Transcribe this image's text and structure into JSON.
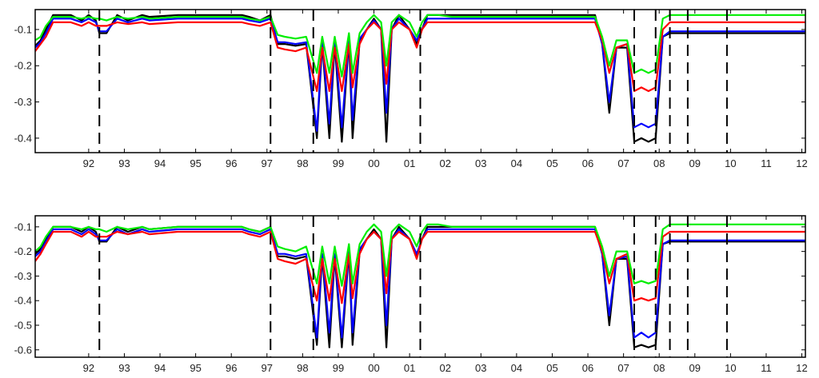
{
  "chart_data": [
    {
      "type": "line",
      "ylim": [
        -0.44,
        -0.045
      ],
      "xlim": [
        1991.0,
        2012.6
      ],
      "yticks": [
        -0.1,
        -0.2,
        -0.3,
        -0.4
      ],
      "ytick_labels": [
        "-0.1",
        "-0.2",
        "-0.3",
        "-0.4"
      ],
      "xticks": [
        1992.5,
        1993.5,
        1994.5,
        1995.5,
        1996.5,
        1997.5,
        1998.5,
        1999.5,
        2000.5,
        2001.5,
        2002.5,
        2003.5,
        2004.5,
        2005.5,
        2006.5,
        2007.5,
        2008.5,
        2009.5,
        2010.5,
        2011.5,
        2012.5
      ],
      "xtick_labels": [
        "92",
        "93",
        "94",
        "95",
        "96",
        "97",
        "98",
        "99",
        "00",
        "01",
        "02",
        "03",
        "04",
        "05",
        "06",
        "07",
        "08",
        "09",
        "10",
        "11",
        "12"
      ],
      "vlines": [
        1992.8,
        1997.6,
        1998.8,
        2001.8,
        2007.8,
        2008.4,
        2008.8,
        2009.3,
        2010.4
      ],
      "grid": false,
      "x": [
        1991.0,
        1991.15,
        1991.3,
        1991.5,
        1992.0,
        1992.3,
        1992.5,
        1992.7,
        1992.8,
        1993.0,
        1993.3,
        1993.6,
        1994.0,
        1994.2,
        1995.0,
        1996.0,
        1996.8,
        1997.0,
        1997.3,
        1997.6,
        1997.8,
        1998.0,
        1998.3,
        1998.6,
        1998.9,
        1999.05,
        1999.25,
        1999.4,
        1999.6,
        1999.8,
        1999.9,
        2000.1,
        2000.3,
        2000.5,
        2000.7,
        2000.85,
        2001.0,
        2001.2,
        2001.5,
        2001.7,
        2001.85,
        2002.0,
        2002.3,
        2002.7,
        2003.0,
        2003.8,
        2004.0,
        2005.0,
        2006.0,
        2006.7,
        2006.9,
        2007.1,
        2007.3,
        2007.6,
        2007.8,
        2008.0,
        2008.2,
        2008.4,
        2008.6,
        2008.8,
        2009.0,
        2010.0,
        2011.0,
        2012.6
      ],
      "series": [
        {
          "color": "#000000",
          "values": [
            -0.145,
            -0.13,
            -0.1,
            -0.06,
            -0.06,
            -0.075,
            -0.06,
            -0.075,
            -0.11,
            -0.11,
            -0.06,
            -0.075,
            -0.06,
            -0.065,
            -0.06,
            -0.06,
            -0.06,
            -0.065,
            -0.075,
            -0.06,
            -0.14,
            -0.14,
            -0.145,
            -0.14,
            -0.4,
            -0.14,
            -0.4,
            -0.14,
            -0.41,
            -0.13,
            -0.4,
            -0.13,
            -0.1,
            -0.07,
            -0.1,
            -0.41,
            -0.1,
            -0.06,
            -0.1,
            -0.14,
            -0.1,
            -0.06,
            -0.06,
            -0.06,
            -0.06,
            -0.06,
            -0.06,
            -0.06,
            -0.06,
            -0.06,
            -0.14,
            -0.33,
            -0.15,
            -0.15,
            -0.41,
            -0.4,
            -0.41,
            -0.4,
            -0.12,
            -0.11,
            -0.11,
            -0.11,
            -0.11,
            -0.11
          ]
        },
        {
          "color": "#0000ff",
          "values": [
            -0.15,
            -0.135,
            -0.11,
            -0.07,
            -0.07,
            -0.08,
            -0.07,
            -0.08,
            -0.105,
            -0.105,
            -0.07,
            -0.08,
            -0.07,
            -0.075,
            -0.07,
            -0.07,
            -0.07,
            -0.075,
            -0.08,
            -0.07,
            -0.135,
            -0.135,
            -0.14,
            -0.135,
            -0.38,
            -0.135,
            -0.36,
            -0.13,
            -0.37,
            -0.125,
            -0.35,
            -0.125,
            -0.1,
            -0.075,
            -0.1,
            -0.33,
            -0.1,
            -0.07,
            -0.1,
            -0.13,
            -0.1,
            -0.07,
            -0.07,
            -0.07,
            -0.07,
            -0.07,
            -0.07,
            -0.07,
            -0.07,
            -0.07,
            -0.14,
            -0.3,
            -0.15,
            -0.14,
            -0.37,
            -0.36,
            -0.37,
            -0.36,
            -0.12,
            -0.105,
            -0.105,
            -0.105,
            -0.105,
            -0.105
          ]
        },
        {
          "color": "#ff0000",
          "values": [
            -0.16,
            -0.14,
            -0.12,
            -0.08,
            -0.08,
            -0.09,
            -0.08,
            -0.09,
            -0.09,
            -0.09,
            -0.08,
            -0.085,
            -0.08,
            -0.085,
            -0.08,
            -0.08,
            -0.08,
            -0.085,
            -0.09,
            -0.08,
            -0.15,
            -0.155,
            -0.16,
            -0.15,
            -0.27,
            -0.15,
            -0.27,
            -0.15,
            -0.27,
            -0.14,
            -0.26,
            -0.14,
            -0.1,
            -0.08,
            -0.1,
            -0.25,
            -0.1,
            -0.08,
            -0.1,
            -0.15,
            -0.1,
            -0.08,
            -0.08,
            -0.08,
            -0.08,
            -0.08,
            -0.08,
            -0.08,
            -0.08,
            -0.08,
            -0.13,
            -0.22,
            -0.15,
            -0.14,
            -0.27,
            -0.26,
            -0.27,
            -0.26,
            -0.1,
            -0.08,
            -0.08,
            -0.08,
            -0.08,
            -0.08
          ]
        },
        {
          "color": "#00ee00",
          "values": [
            -0.13,
            -0.12,
            -0.09,
            -0.065,
            -0.065,
            -0.07,
            -0.065,
            -0.07,
            -0.07,
            -0.075,
            -0.065,
            -0.07,
            -0.065,
            -0.07,
            -0.065,
            -0.065,
            -0.065,
            -0.07,
            -0.075,
            -0.065,
            -0.115,
            -0.12,
            -0.125,
            -0.12,
            -0.22,
            -0.12,
            -0.22,
            -0.12,
            -0.23,
            -0.11,
            -0.22,
            -0.11,
            -0.08,
            -0.06,
            -0.08,
            -0.2,
            -0.08,
            -0.06,
            -0.08,
            -0.12,
            -0.08,
            -0.06,
            -0.06,
            -0.065,
            -0.065,
            -0.065,
            -0.065,
            -0.065,
            -0.065,
            -0.065,
            -0.12,
            -0.2,
            -0.13,
            -0.13,
            -0.22,
            -0.21,
            -0.22,
            -0.21,
            -0.07,
            -0.06,
            -0.06,
            -0.06,
            -0.06,
            -0.06
          ]
        }
      ]
    },
    {
      "type": "line",
      "ylim": [
        -0.63,
        -0.055
      ],
      "xlim": [
        1991.0,
        2012.6
      ],
      "yticks": [
        -0.1,
        -0.2,
        -0.3,
        -0.4,
        -0.5,
        -0.6
      ],
      "ytick_labels": [
        "-0.1",
        "-0.2",
        "-0.3",
        "-0.4",
        "-0.5",
        "-0.6"
      ],
      "xticks": [
        1992.5,
        1993.5,
        1994.5,
        1995.5,
        1996.5,
        1997.5,
        1998.5,
        1999.5,
        2000.5,
        2001.5,
        2002.5,
        2003.5,
        2004.5,
        2005.5,
        2006.5,
        2007.5,
        2008.5,
        2009.5,
        2010.5,
        2011.5,
        2012.5
      ],
      "xtick_labels": [
        "92",
        "93",
        "94",
        "95",
        "96",
        "97",
        "98",
        "99",
        "00",
        "01",
        "02",
        "03",
        "04",
        "05",
        "06",
        "07",
        "08",
        "09",
        "10",
        "11",
        "12"
      ],
      "vlines": [
        1992.8,
        1997.6,
        1998.8,
        2001.8,
        2007.8,
        2008.4,
        2008.8,
        2009.3,
        2010.4
      ],
      "grid": false,
      "x": [
        1991.0,
        1991.15,
        1991.3,
        1991.5,
        1992.0,
        1992.3,
        1992.5,
        1992.7,
        1992.8,
        1993.0,
        1993.3,
        1993.6,
        1994.0,
        1994.2,
        1995.0,
        1996.0,
        1996.8,
        1997.0,
        1997.3,
        1997.6,
        1997.8,
        1998.0,
        1998.3,
        1998.6,
        1998.9,
        1999.05,
        1999.25,
        1999.4,
        1999.6,
        1999.8,
        1999.9,
        2000.1,
        2000.3,
        2000.5,
        2000.7,
        2000.85,
        2001.0,
        2001.2,
        2001.5,
        2001.7,
        2001.85,
        2002.0,
        2002.3,
        2002.7,
        2003.0,
        2003.8,
        2004.0,
        2005.0,
        2006.0,
        2006.7,
        2006.9,
        2007.1,
        2007.3,
        2007.6,
        2007.8,
        2008.0,
        2008.2,
        2008.4,
        2008.6,
        2008.8,
        2009.0,
        2010.0,
        2011.0,
        2012.6
      ],
      "series": [
        {
          "color": "#000000",
          "values": [
            -0.21,
            -0.19,
            -0.15,
            -0.1,
            -0.1,
            -0.12,
            -0.1,
            -0.12,
            -0.16,
            -0.16,
            -0.1,
            -0.12,
            -0.1,
            -0.11,
            -0.1,
            -0.1,
            -0.1,
            -0.11,
            -0.12,
            -0.1,
            -0.22,
            -0.22,
            -0.23,
            -0.22,
            -0.58,
            -0.22,
            -0.59,
            -0.22,
            -0.59,
            -0.2,
            -0.58,
            -0.2,
            -0.15,
            -0.11,
            -0.15,
            -0.59,
            -0.15,
            -0.1,
            -0.15,
            -0.22,
            -0.15,
            -0.1,
            -0.1,
            -0.1,
            -0.1,
            -0.1,
            -0.1,
            -0.1,
            -0.1,
            -0.1,
            -0.21,
            -0.5,
            -0.23,
            -0.23,
            -0.59,
            -0.58,
            -0.59,
            -0.58,
            -0.17,
            -0.16,
            -0.16,
            -0.16,
            -0.16,
            -0.16
          ]
        },
        {
          "color": "#0000ff",
          "values": [
            -0.22,
            -0.2,
            -0.16,
            -0.11,
            -0.11,
            -0.13,
            -0.11,
            -0.13,
            -0.155,
            -0.155,
            -0.11,
            -0.13,
            -0.11,
            -0.12,
            -0.11,
            -0.11,
            -0.11,
            -0.12,
            -0.13,
            -0.11,
            -0.21,
            -0.21,
            -0.22,
            -0.21,
            -0.55,
            -0.21,
            -0.53,
            -0.21,
            -0.55,
            -0.19,
            -0.53,
            -0.19,
            -0.15,
            -0.12,
            -0.15,
            -0.5,
            -0.15,
            -0.11,
            -0.15,
            -0.21,
            -0.15,
            -0.11,
            -0.11,
            -0.11,
            -0.11,
            -0.11,
            -0.11,
            -0.11,
            -0.11,
            -0.11,
            -0.21,
            -0.46,
            -0.23,
            -0.22,
            -0.55,
            -0.53,
            -0.55,
            -0.53,
            -0.17,
            -0.155,
            -0.155,
            -0.155,
            -0.155,
            -0.155
          ]
        },
        {
          "color": "#ff0000",
          "values": [
            -0.24,
            -0.21,
            -0.17,
            -0.12,
            -0.12,
            -0.14,
            -0.12,
            -0.14,
            -0.14,
            -0.14,
            -0.12,
            -0.13,
            -0.12,
            -0.13,
            -0.12,
            -0.12,
            -0.12,
            -0.13,
            -0.14,
            -0.12,
            -0.23,
            -0.24,
            -0.25,
            -0.23,
            -0.4,
            -0.23,
            -0.4,
            -0.23,
            -0.41,
            -0.21,
            -0.39,
            -0.21,
            -0.15,
            -0.12,
            -0.15,
            -0.37,
            -0.15,
            -0.12,
            -0.15,
            -0.23,
            -0.15,
            -0.12,
            -0.12,
            -0.12,
            -0.12,
            -0.12,
            -0.12,
            -0.12,
            -0.12,
            -0.12,
            -0.2,
            -0.33,
            -0.23,
            -0.21,
            -0.4,
            -0.39,
            -0.4,
            -0.39,
            -0.14,
            -0.12,
            -0.12,
            -0.12,
            -0.12,
            -0.12
          ]
        },
        {
          "color": "#00ee00",
          "values": [
            -0.2,
            -0.18,
            -0.14,
            -0.1,
            -0.1,
            -0.11,
            -0.1,
            -0.11,
            -0.11,
            -0.12,
            -0.1,
            -0.11,
            -0.1,
            -0.11,
            -0.1,
            -0.1,
            -0.1,
            -0.11,
            -0.12,
            -0.1,
            -0.18,
            -0.19,
            -0.2,
            -0.18,
            -0.33,
            -0.18,
            -0.33,
            -0.18,
            -0.34,
            -0.17,
            -0.33,
            -0.17,
            -0.12,
            -0.09,
            -0.12,
            -0.3,
            -0.12,
            -0.09,
            -0.12,
            -0.18,
            -0.12,
            -0.09,
            -0.09,
            -0.1,
            -0.1,
            -0.1,
            -0.1,
            -0.1,
            -0.1,
            -0.1,
            -0.18,
            -0.3,
            -0.2,
            -0.2,
            -0.33,
            -0.32,
            -0.33,
            -0.32,
            -0.11,
            -0.09,
            -0.09,
            -0.09,
            -0.09,
            -0.09
          ]
        }
      ]
    }
  ]
}
